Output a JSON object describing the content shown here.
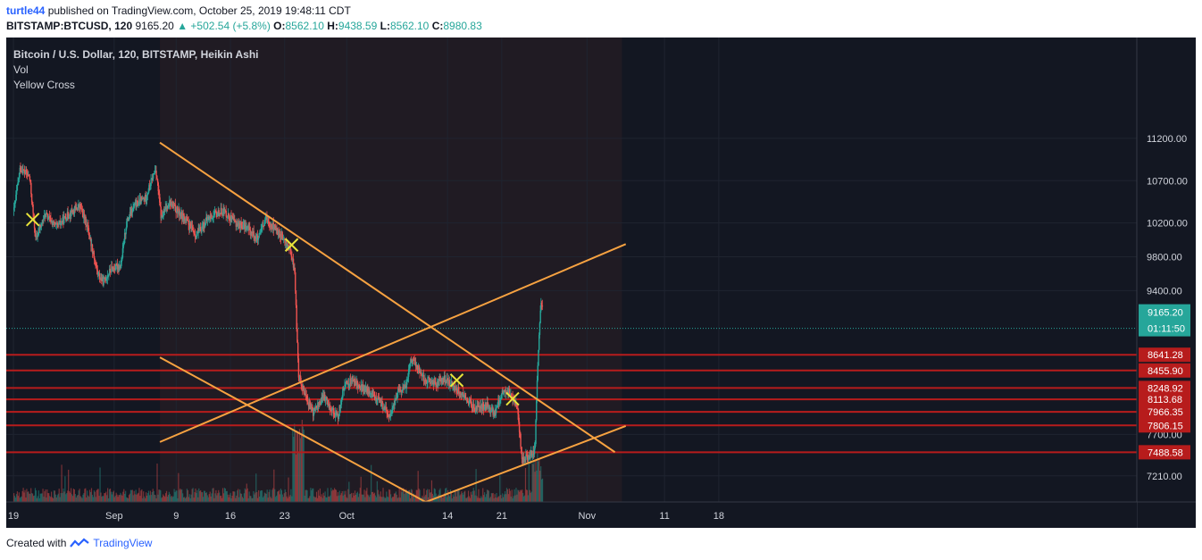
{
  "header": {
    "user": "turtle44",
    "published_text": "published on TradingView.com, October 25, 2019 19:48:11 CDT",
    "symbol": "BITSTAMP:BTCUSD, 120",
    "last": "9165.20",
    "change": "▲ +502.54 (+5.8%)",
    "o_label": "O:",
    "o": "8562.10",
    "h_label": "H:",
    "h": "9438.59",
    "l_label": "L:",
    "l": "8562.10",
    "c_label": "C:",
    "c": "8980.83"
  },
  "legend": {
    "title": "Bitcoin / U.S. Dollar, 120, BITSTAMP, Heikin Ashi",
    "vol": "Vol",
    "indicator": "Yellow Cross"
  },
  "footer": {
    "created_with": "Created with",
    "brand": "TradingView"
  },
  "colors": {
    "background": "#131722",
    "grid": "#1f2430",
    "up": "#26a69a",
    "down": "#ef5350",
    "trendline": "#f7a241",
    "cross": "#e8e43a",
    "level": "#b71c1c",
    "price_tag": "#26a69a"
  },
  "chart_data": {
    "type": "candlestick",
    "title": "Bitcoin / U.S. Dollar, 120, BITSTAMP, Heikin Ashi",
    "ylim": [
      6900,
      11550
    ],
    "y_ticks": [
      "11200.00",
      "10700.00",
      "10200.00",
      "9800.00",
      "9400.00",
      "7700.00",
      "7210.00"
    ],
    "x_ticks": [
      "19",
      "Sep",
      "9",
      "16",
      "23",
      "Oct",
      "14",
      "21",
      "Nov",
      "11",
      "18"
    ],
    "x_tick_days": [
      0,
      13,
      21,
      28,
      35,
      43,
      56,
      63,
      74,
      84,
      91
    ],
    "x_start": "2019-08-19",
    "last_price": {
      "value": 9165.2,
      "label": "9165.20",
      "countdown": "01:11:50"
    },
    "horizontal_levels": [
      {
        "value": 8641.28,
        "label": "8641.28"
      },
      {
        "value": 8455.9,
        "label": "8455.90"
      },
      {
        "value": 8248.92,
        "label": "8248.92"
      },
      {
        "value": 8113.68,
        "label": "8113.68"
      },
      {
        "value": 7966.35,
        "label": "7966.35"
      },
      {
        "value": 7806.15,
        "label": "7806.15"
      },
      {
        "value": 7488.58,
        "label": "7488.58"
      }
    ],
    "trendlines": [
      {
        "from": {
          "day": 18.9,
          "value": 11150
        },
        "to": {
          "day": 77.6,
          "value": 7490
        }
      },
      {
        "from": {
          "day": 18.9,
          "value": 8610
        },
        "to": {
          "day": 53.2,
          "value": 6900
        }
      },
      {
        "from": {
          "day": 18.9,
          "value": 7610
        },
        "to": {
          "day": 79.0,
          "value": 9950
        }
      },
      {
        "from": {
          "day": 53.2,
          "value": 6900
        },
        "to": {
          "day": 79.0,
          "value": 7800
        }
      }
    ],
    "cross_markers": [
      {
        "day": 2.5,
        "value": 10240
      },
      {
        "day": 35.9,
        "value": 9940
      },
      {
        "day": 57.2,
        "value": 8340
      },
      {
        "day": 64.4,
        "value": 8120
      }
    ],
    "price_path": [
      {
        "day": 0,
        "value": 10350
      },
      {
        "day": 0.8,
        "value": 10850
      },
      {
        "day": 2.0,
        "value": 10750
      },
      {
        "day": 2.8,
        "value": 10000
      },
      {
        "day": 4.0,
        "value": 10300
      },
      {
        "day": 5.5,
        "value": 10150
      },
      {
        "day": 7.0,
        "value": 10300
      },
      {
        "day": 8.5,
        "value": 10400
      },
      {
        "day": 9.5,
        "value": 10150
      },
      {
        "day": 10.8,
        "value": 9600
      },
      {
        "day": 11.5,
        "value": 9500
      },
      {
        "day": 12.5,
        "value": 9650
      },
      {
        "day": 13.8,
        "value": 9700
      },
      {
        "day": 14.5,
        "value": 10200
      },
      {
        "day": 15.5,
        "value": 10400
      },
      {
        "day": 17.0,
        "value": 10500
      },
      {
        "day": 18.3,
        "value": 10850
      },
      {
        "day": 19.0,
        "value": 10250
      },
      {
        "day": 20.0,
        "value": 10450
      },
      {
        "day": 22.0,
        "value": 10250
      },
      {
        "day": 23.5,
        "value": 10050
      },
      {
        "day": 25.0,
        "value": 10250
      },
      {
        "day": 27.0,
        "value": 10350
      },
      {
        "day": 28.5,
        "value": 10200
      },
      {
        "day": 30.0,
        "value": 10150
      },
      {
        "day": 31.5,
        "value": 10000
      },
      {
        "day": 32.5,
        "value": 10250
      },
      {
        "day": 34.0,
        "value": 10100
      },
      {
        "day": 35.5,
        "value": 9900
      },
      {
        "day": 36.2,
        "value": 9650
      },
      {
        "day": 36.7,
        "value": 8400
      },
      {
        "day": 37.5,
        "value": 8200
      },
      {
        "day": 38.5,
        "value": 7950
      },
      {
        "day": 40.0,
        "value": 8150
      },
      {
        "day": 41.0,
        "value": 8000
      },
      {
        "day": 41.8,
        "value": 7900
      },
      {
        "day": 42.5,
        "value": 8250
      },
      {
        "day": 43.5,
        "value": 8350
      },
      {
        "day": 45.0,
        "value": 8250
      },
      {
        "day": 46.5,
        "value": 8150
      },
      {
        "day": 47.5,
        "value": 8050
      },
      {
        "day": 48.5,
        "value": 7900
      },
      {
        "day": 49.5,
        "value": 8200
      },
      {
        "day": 50.5,
        "value": 8250
      },
      {
        "day": 51.2,
        "value": 8600
      },
      {
        "day": 52.0,
        "value": 8500
      },
      {
        "day": 53.0,
        "value": 8350
      },
      {
        "day": 54.5,
        "value": 8300
      },
      {
        "day": 55.5,
        "value": 8350
      },
      {
        "day": 57.0,
        "value": 8250
      },
      {
        "day": 58.5,
        "value": 8100
      },
      {
        "day": 59.5,
        "value": 8000
      },
      {
        "day": 61.0,
        "value": 8050
      },
      {
        "day": 62.0,
        "value": 7950
      },
      {
        "day": 63.0,
        "value": 8200
      },
      {
        "day": 64.0,
        "value": 8200
      },
      {
        "day": 65.0,
        "value": 8000
      },
      {
        "day": 65.5,
        "value": 7400
      },
      {
        "day": 66.5,
        "value": 7450
      },
      {
        "day": 67.2,
        "value": 7500
      },
      {
        "day": 67.6,
        "value": 8600
      },
      {
        "day": 68.0,
        "value": 9300
      },
      {
        "day": 68.2,
        "value": 9165
      }
    ]
  }
}
